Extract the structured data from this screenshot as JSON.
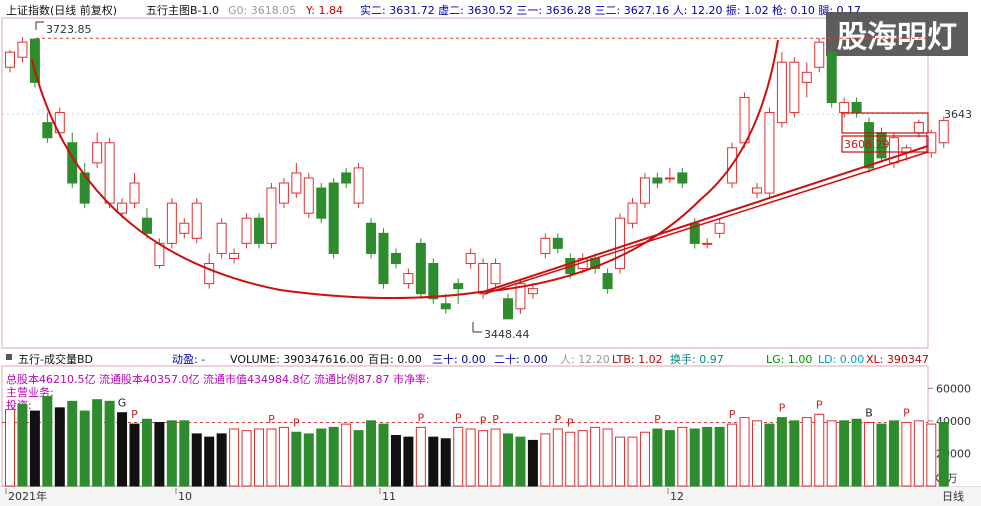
{
  "watermark": "股海明灯",
  "header": {
    "title": "上证指数(日线 前复权)",
    "indicator": "五行主图B-1.0",
    "g0_label": "G0: 3618.05",
    "y_label": "Y: 1.84",
    "stats": "实二: 3631.72  虚二: 3630.52  三一: 3636.28  三二: 3627.16  人: 12.20  振: 1.02  枪: 0.10  腿: 0.17"
  },
  "price_pane": {
    "right_tick": "3643",
    "annotations": {
      "high": "3723.85",
      "low": "3448.44",
      "box": "3608.29"
    }
  },
  "volume_pane": {
    "header": {
      "title": "五行-成交量BD",
      "dongying": "动盈: -",
      "volume": "VOLUME: 390347616.00",
      "bairi": "百日: 0.00",
      "sanshi": "三十: 0.00",
      "ershi": "二十: 0.00",
      "ren": "人: 12.20",
      "ltb": "LTB: 1.02",
      "huanshou": "换手: 0.97",
      "lg": "LG: 1.00",
      "ld": "LD: 0.00",
      "xl": "XL: 390347"
    },
    "info_line": "总股本46210.5亿 流通股本40357.0亿 流通市值434984.8亿 流通比例87.87  市净率:",
    "business_label": "主营业务:",
    "invest_label": "投资:",
    "unit": "X1万",
    "y_ticks": [
      "60000",
      "40000",
      "20000"
    ]
  },
  "x_axis": {
    "labels": [
      "2021年",
      "10",
      "11",
      "12"
    ],
    "period": "日线"
  },
  "chart_data": {
    "type": "candlestick",
    "price": {
      "ylim": [
        3420,
        3740
      ],
      "dashed_high_line": 3723.85,
      "open": [
        3695,
        3705,
        3723,
        3640,
        3630,
        3620,
        3590,
        3600,
        3560,
        3550,
        3560,
        3545,
        3498,
        3520,
        3530,
        3525,
        3480,
        3510,
        3505,
        3520,
        3545,
        3520,
        3560,
        3570,
        3550,
        3575,
        3580,
        3590,
        3560,
        3540,
        3530,
        3510,
        3480,
        3520,
        3500,
        3460,
        3480,
        3500,
        3470,
        3480,
        3465,
        3455,
        3470,
        3510,
        3525,
        3505,
        3495,
        3505,
        3490,
        3495,
        3540,
        3560,
        3585,
        3585,
        3590,
        3540,
        3520,
        3530,
        3580,
        3620,
        3570,
        3570,
        3640,
        3650,
        3680,
        3695,
        3710,
        3650,
        3660,
        3640,
        3630,
        3600,
        3610,
        3630,
        3610,
        3620
      ],
      "close": [
        3710,
        3720,
        3680,
        3625,
        3650,
        3580,
        3560,
        3620,
        3620,
        3560,
        3580,
        3530,
        3520,
        3560,
        3540,
        3560,
        3500,
        3540,
        3510,
        3545,
        3520,
        3575,
        3580,
        3590,
        3585,
        3545,
        3510,
        3580,
        3595,
        3510,
        3480,
        3500,
        3490,
        3470,
        3465,
        3455,
        3475,
        3510,
        3500,
        3500,
        3445,
        3480,
        3475,
        3525,
        3515,
        3490,
        3505,
        3495,
        3475,
        3545,
        3560,
        3585,
        3580,
        3585,
        3580,
        3520,
        3520,
        3540,
        3615,
        3665,
        3575,
        3650,
        3700,
        3700,
        3690,
        3720,
        3660,
        3660,
        3650,
        3595,
        3605,
        3625,
        3615,
        3640,
        3630,
        3642
      ],
      "high": [
        3712,
        3725,
        3724,
        3650,
        3655,
        3630,
        3600,
        3630,
        3625,
        3565,
        3590,
        3555,
        3525,
        3565,
        3545,
        3565,
        3510,
        3545,
        3515,
        3550,
        3550,
        3580,
        3585,
        3600,
        3590,
        3580,
        3585,
        3595,
        3600,
        3545,
        3535,
        3515,
        3495,
        3525,
        3505,
        3470,
        3485,
        3515,
        3505,
        3505,
        3470,
        3485,
        3480,
        3530,
        3530,
        3510,
        3510,
        3510,
        3495,
        3550,
        3565,
        3590,
        3590,
        3595,
        3595,
        3545,
        3525,
        3545,
        3620,
        3670,
        3580,
        3655,
        3710,
        3705,
        3700,
        3724,
        3712,
        3665,
        3665,
        3645,
        3635,
        3630,
        3618,
        3643,
        3633,
        3646
      ],
      "low": [
        3690,
        3700,
        3675,
        3620,
        3625,
        3575,
        3555,
        3595,
        3555,
        3545,
        3555,
        3525,
        3495,
        3515,
        3525,
        3520,
        3475,
        3505,
        3500,
        3515,
        3515,
        3515,
        3555,
        3565,
        3545,
        3540,
        3505,
        3575,
        3555,
        3505,
        3475,
        3495,
        3475,
        3465,
        3460,
        3450,
        3460,
        3495,
        3465,
        3475,
        3448,
        3450,
        3465,
        3505,
        3510,
        3485,
        3490,
        3490,
        3470,
        3490,
        3535,
        3555,
        3575,
        3580,
        3575,
        3515,
        3515,
        3525,
        3575,
        3615,
        3565,
        3565,
        3635,
        3645,
        3665,
        3690,
        3655,
        3645,
        3645,
        3590,
        3600,
        3595,
        3602,
        3625,
        3605,
        3615
      ]
    },
    "volume": {
      "ylim": [
        0,
        70000
      ],
      "dashed_level": 39000,
      "values": [
        47000,
        50000,
        46000,
        55000,
        48000,
        52000,
        46000,
        53000,
        52000,
        45000,
        38000,
        41000,
        39000,
        40000,
        40000,
        32000,
        30000,
        32000,
        35000,
        34000,
        35000,
        35000,
        36000,
        33000,
        32000,
        35000,
        36000,
        38000,
        34000,
        40000,
        38000,
        31000,
        30000,
        36000,
        30000,
        29000,
        36000,
        35000,
        34000,
        35000,
        32000,
        30000,
        28000,
        32000,
        35000,
        33000,
        34000,
        36000,
        35000,
        30000,
        30000,
        33000,
        35000,
        34000,
        36000,
        35000,
        36000,
        36000,
        38000,
        42000,
        40000,
        38000,
        42000,
        40000,
        42000,
        44000,
        40000,
        40000,
        41000,
        39000,
        38000,
        40000,
        39000,
        40000,
        38000,
        39000
      ],
      "colors": [
        "R",
        "G",
        "K",
        "G",
        "K",
        "G",
        "G",
        "G",
        "G",
        "K",
        "K",
        "G",
        "K",
        "G",
        "G",
        "K",
        "K",
        "K",
        "R",
        "R",
        "R",
        "R",
        "R",
        "G",
        "G",
        "G",
        "G",
        "R",
        "G",
        "G",
        "G",
        "K",
        "K",
        "R",
        "K",
        "K",
        "R",
        "R",
        "R",
        "R",
        "G",
        "G",
        "K",
        "R",
        "R",
        "R",
        "R",
        "R",
        "R",
        "R",
        "R",
        "R",
        "G",
        "G",
        "R",
        "G",
        "G",
        "G",
        "R",
        "R",
        "R",
        "G",
        "G",
        "G",
        "R",
        "R",
        "R",
        "G",
        "G",
        "R",
        "G",
        "G",
        "R",
        "R",
        "R",
        "G"
      ],
      "markers": [
        {
          "i": 9,
          "label": "G"
        },
        {
          "i": 10,
          "label": "P"
        },
        {
          "i": 21,
          "label": "P"
        },
        {
          "i": 23,
          "label": "P"
        },
        {
          "i": 33,
          "label": "P"
        },
        {
          "i": 36,
          "label": "P"
        },
        {
          "i": 38,
          "label": "P"
        },
        {
          "i": 39,
          "label": "P"
        },
        {
          "i": 44,
          "label": "P"
        },
        {
          "i": 45,
          "label": "P"
        },
        {
          "i": 52,
          "label": "P"
        },
        {
          "i": 58,
          "label": "P"
        },
        {
          "i": 62,
          "label": "P"
        },
        {
          "i": 65,
          "label": "P"
        },
        {
          "i": 69,
          "label": "B"
        },
        {
          "i": 72,
          "label": "P"
        }
      ]
    }
  }
}
